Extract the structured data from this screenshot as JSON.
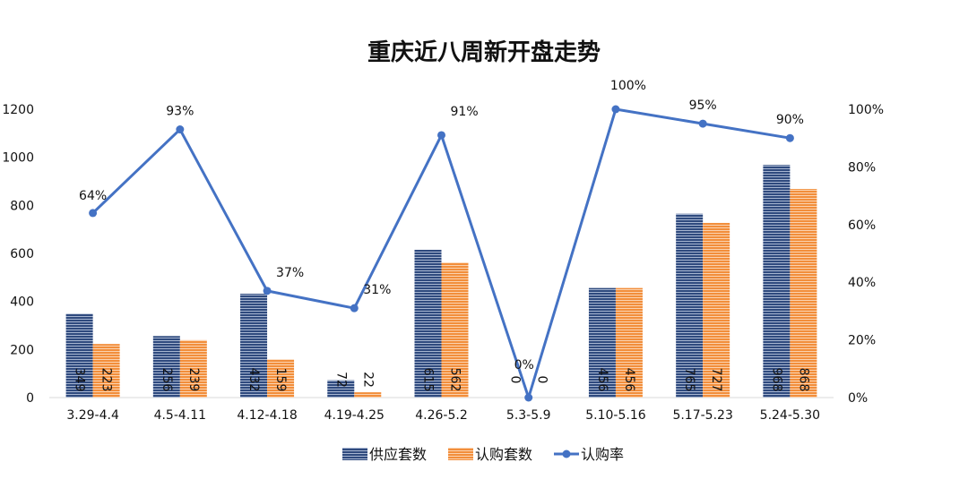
{
  "chart_data": {
    "type": "bar",
    "title": "重庆近八周新开盘走势",
    "categories": [
      "3.29-4.4",
      "4.5-4.11",
      "4.12-4.18",
      "4.19-4.25",
      "4.26-5.2",
      "5.3-5.9",
      "5.10-5.16",
      "5.17-5.23",
      "5.24-5.30"
    ],
    "series": [
      {
        "name": "供应套数",
        "type": "bar",
        "axis": "left",
        "color": "#2F4A7E",
        "values": [
          349,
          256,
          432,
          72,
          615,
          0,
          456,
          765,
          968
        ]
      },
      {
        "name": "认购套数",
        "type": "bar",
        "axis": "left",
        "color": "#F28E3B",
        "values": [
          223,
          239,
          159,
          22,
          562,
          0,
          456,
          727,
          868
        ]
      },
      {
        "name": "认购率",
        "type": "line",
        "axis": "right",
        "color": "#4472C4",
        "values": [
          64,
          93,
          37,
          31,
          91,
          0,
          100,
          95,
          90
        ],
        "labels": [
          "64%",
          "93%",
          "37%",
          "31%",
          "91%",
          "0%",
          "100%",
          "95%",
          "90%"
        ]
      }
    ],
    "ylim": [
      0,
      1200
    ],
    "yticks": [
      "0",
      "200",
      "400",
      "600",
      "800",
      "1000",
      "1200"
    ],
    "y2lim": [
      0,
      100
    ],
    "y2ticks": [
      "0%",
      "20%",
      "40%",
      "60%",
      "80%",
      "100%"
    ],
    "xlabel": "",
    "ylabel": "",
    "grid": false,
    "legend_position": "bottom"
  }
}
